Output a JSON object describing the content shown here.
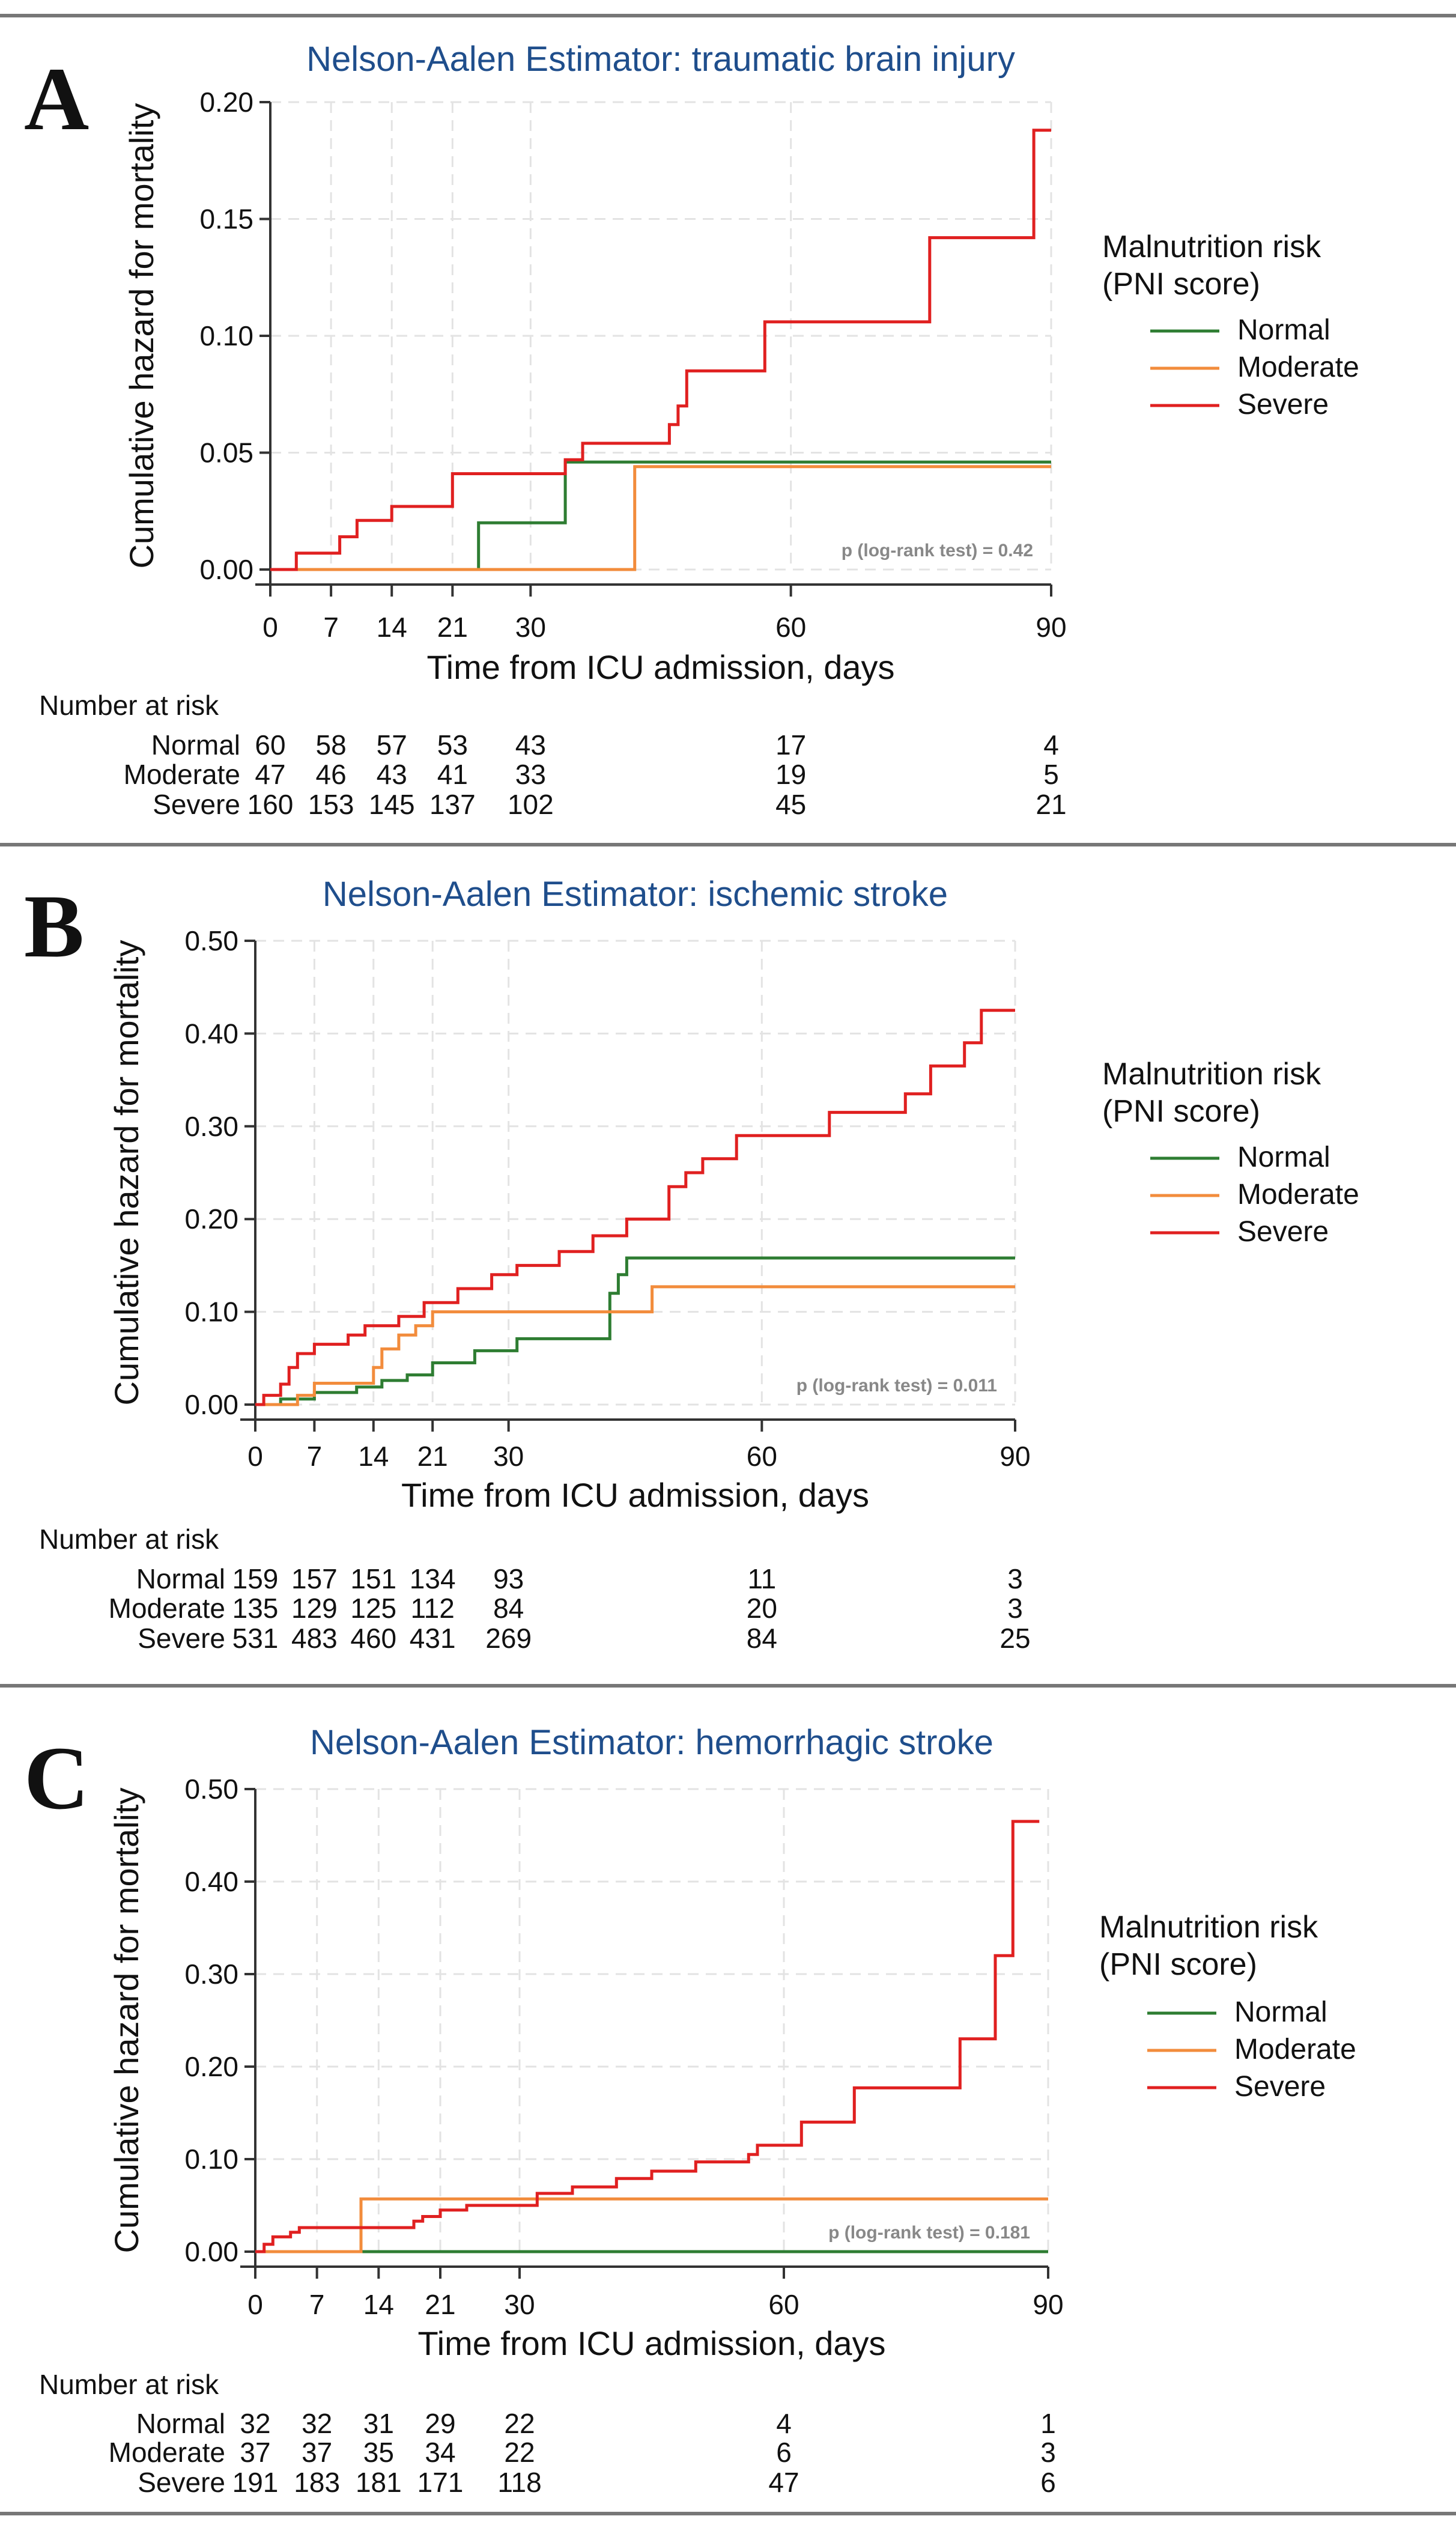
{
  "chart_data": [
    {
      "type": "line",
      "panel_label": "A",
      "title": "Nelson-Aalen Estimator: traumatic brain injury",
      "xlabel": "Time from ICU admission, days",
      "ylabel": "Cumulative hazard for mortality",
      "xlim": [
        0,
        90
      ],
      "ylim": [
        0,
        0.2
      ],
      "x_ticks": [
        0,
        7,
        14,
        21,
        30,
        60,
        90
      ],
      "y_ticks": [
        "0.00",
        "0.05",
        "0.10",
        "0.15",
        "0.20"
      ],
      "legend_title_line1": "Malnutrition risk",
      "legend_title_line2": "(PNI score)",
      "legend_position": "right",
      "annotation": "p (log-rank test) = 0.42",
      "series": [
        {
          "name": "Normal",
          "color": "#2e7d32",
          "points": [
            [
              0,
              0
            ],
            [
              24,
              0
            ],
            [
              24,
              0.02
            ],
            [
              34,
              0.02
            ],
            [
              34,
              0.046
            ],
            [
              90,
              0.046
            ]
          ]
        },
        {
          "name": "Moderate",
          "color": "#f28c3c",
          "points": [
            [
              0,
              0
            ],
            [
              42,
              0
            ],
            [
              42,
              0.044
            ],
            [
              90,
              0.044
            ]
          ]
        },
        {
          "name": "Severe",
          "color": "#e02020",
          "points": [
            [
              0,
              0
            ],
            [
              3,
              0
            ],
            [
              3,
              0.007
            ],
            [
              8,
              0.007
            ],
            [
              8,
              0.014
            ],
            [
              10,
              0.014
            ],
            [
              10,
              0.021
            ],
            [
              14,
              0.021
            ],
            [
              14,
              0.027
            ],
            [
              21,
              0.027
            ],
            [
              21,
              0.041
            ],
            [
              34,
              0.041
            ],
            [
              34,
              0.047
            ],
            [
              36,
              0.047
            ],
            [
              36,
              0.054
            ],
            [
              46,
              0.054
            ],
            [
              46,
              0.062
            ],
            [
              47,
              0.062
            ],
            [
              47,
              0.07
            ],
            [
              48,
              0.07
            ],
            [
              48,
              0.085
            ],
            [
              57,
              0.085
            ],
            [
              57,
              0.106
            ],
            [
              76,
              0.106
            ],
            [
              76,
              0.142
            ],
            [
              88,
              0.142
            ],
            [
              88,
              0.188
            ],
            [
              90,
              0.188
            ]
          ]
        }
      ],
      "risk_table": {
        "title": "Number at risk",
        "times": [
          0,
          7,
          14,
          21,
          30,
          60,
          90
        ],
        "rows": [
          {
            "label": "Normal",
            "values": [
              "60",
              "58",
              "57",
              "53",
              "43",
              "17",
              "4"
            ]
          },
          {
            "label": "Moderate",
            "values": [
              "47",
              "46",
              "43",
              "41",
              "33",
              "19",
              "5"
            ]
          },
          {
            "label": "Severe",
            "values": [
              "160",
              "153",
              "145",
              "137",
              "102",
              "45",
              "21"
            ]
          }
        ]
      }
    },
    {
      "type": "line",
      "panel_label": "B",
      "title": "Nelson-Aalen Estimator: ischemic stroke",
      "xlabel": "Time from ICU admission, days",
      "ylabel": "Cumulative hazard for mortality",
      "xlim": [
        0,
        90
      ],
      "ylim": [
        0,
        0.5
      ],
      "x_ticks": [
        0,
        7,
        14,
        21,
        30,
        60,
        90
      ],
      "y_ticks": [
        "0.00",
        "0.10",
        "0.20",
        "0.30",
        "0.40",
        "0.50"
      ],
      "legend_title_line1": "Malnutrition risk",
      "legend_title_line2": "(PNI score)",
      "legend_position": "right",
      "annotation": "p (log-rank test) = 0.011",
      "series": [
        {
          "name": "Normal",
          "color": "#2e7d32",
          "points": [
            [
              0,
              0
            ],
            [
              3,
              0
            ],
            [
              3,
              0.006
            ],
            [
              7,
              0.006
            ],
            [
              7,
              0.013
            ],
            [
              12,
              0.013
            ],
            [
              12,
              0.019
            ],
            [
              15,
              0.019
            ],
            [
              15,
              0.026
            ],
            [
              18,
              0.026
            ],
            [
              18,
              0.032
            ],
            [
              21,
              0.032
            ],
            [
              21,
              0.045
            ],
            [
              26,
              0.045
            ],
            [
              26,
              0.058
            ],
            [
              31,
              0.058
            ],
            [
              31,
              0.071
            ],
            [
              42,
              0.071
            ],
            [
              42,
              0.12
            ],
            [
              43,
              0.12
            ],
            [
              43,
              0.14
            ],
            [
              44,
              0.14
            ],
            [
              44,
              0.158
            ],
            [
              90,
              0.158
            ]
          ]
        },
        {
          "name": "Moderate",
          "color": "#f28c3c",
          "points": [
            [
              0,
              0
            ],
            [
              5,
              0
            ],
            [
              5,
              0.01
            ],
            [
              7,
              0.01
            ],
            [
              7,
              0.023
            ],
            [
              14,
              0.023
            ],
            [
              14,
              0.04
            ],
            [
              15,
              0.04
            ],
            [
              15,
              0.06
            ],
            [
              17,
              0.06
            ],
            [
              17,
              0.075
            ],
            [
              19,
              0.075
            ],
            [
              19,
              0.085
            ],
            [
              21,
              0.085
            ],
            [
              21,
              0.1
            ],
            [
              47,
              0.1
            ],
            [
              47,
              0.127
            ],
            [
              90,
              0.127
            ]
          ]
        },
        {
          "name": "Severe",
          "color": "#e02020",
          "points": [
            [
              0,
              0
            ],
            [
              1,
              0
            ],
            [
              1,
              0.01
            ],
            [
              3,
              0.01
            ],
            [
              3,
              0.022
            ],
            [
              4,
              0.022
            ],
            [
              4,
              0.04
            ],
            [
              5,
              0.04
            ],
            [
              5,
              0.055
            ],
            [
              7,
              0.055
            ],
            [
              7,
              0.065
            ],
            [
              11,
              0.065
            ],
            [
              11,
              0.075
            ],
            [
              13,
              0.075
            ],
            [
              13,
              0.085
            ],
            [
              17,
              0.085
            ],
            [
              17,
              0.095
            ],
            [
              20,
              0.095
            ],
            [
              20,
              0.11
            ],
            [
              24,
              0.11
            ],
            [
              24,
              0.125
            ],
            [
              28,
              0.125
            ],
            [
              28,
              0.14
            ],
            [
              31,
              0.14
            ],
            [
              31,
              0.15
            ],
            [
              36,
              0.15
            ],
            [
              36,
              0.165
            ],
            [
              40,
              0.165
            ],
            [
              40,
              0.182
            ],
            [
              44,
              0.182
            ],
            [
              44,
              0.2
            ],
            [
              49,
              0.2
            ],
            [
              49,
              0.235
            ],
            [
              51,
              0.235
            ],
            [
              51,
              0.25
            ],
            [
              53,
              0.25
            ],
            [
              53,
              0.265
            ],
            [
              57,
              0.265
            ],
            [
              57,
              0.29
            ],
            [
              68,
              0.29
            ],
            [
              68,
              0.315
            ],
            [
              77,
              0.315
            ],
            [
              77,
              0.335
            ],
            [
              80,
              0.335
            ],
            [
              80,
              0.365
            ],
            [
              84,
              0.365
            ],
            [
              84,
              0.39
            ],
            [
              86,
              0.39
            ],
            [
              86,
              0.425
            ],
            [
              90,
              0.425
            ]
          ]
        }
      ],
      "risk_table": {
        "title": "Number at risk",
        "times": [
          0,
          7,
          14,
          21,
          30,
          60,
          90
        ],
        "rows": [
          {
            "label": "Normal",
            "values": [
              "159",
              "157",
              "151",
              "134",
              "93",
              "11",
              "3"
            ]
          },
          {
            "label": "Moderate",
            "values": [
              "135",
              "129",
              "125",
              "112",
              "84",
              "20",
              "3"
            ]
          },
          {
            "label": "Severe",
            "values": [
              "531",
              "483",
              "460",
              "431",
              "269",
              "84",
              "25"
            ]
          }
        ]
      }
    },
    {
      "type": "line",
      "panel_label": "C",
      "title": "Nelson-Aalen Estimator: hemorrhagic stroke",
      "xlabel": "Time from ICU admission, days",
      "ylabel": "Cumulative hazard for mortality",
      "xlim": [
        0,
        90
      ],
      "ylim": [
        0,
        0.5
      ],
      "x_ticks": [
        0,
        7,
        14,
        21,
        30,
        60,
        90
      ],
      "y_ticks": [
        "0.00",
        "0.10",
        "0.20",
        "0.30",
        "0.40",
        "0.50"
      ],
      "legend_title_line1": "Malnutrition risk",
      "legend_title_line2": "(PNI score)",
      "legend_position": "right",
      "annotation": "p (log-rank test) = 0.181",
      "series": [
        {
          "name": "Normal",
          "color": "#2e7d32",
          "points": [
            [
              0,
              0
            ],
            [
              90,
              0
            ]
          ]
        },
        {
          "name": "Moderate",
          "color": "#f28c3c",
          "points": [
            [
              0,
              0
            ],
            [
              12,
              0
            ],
            [
              12,
              0.057
            ],
            [
              90,
              0.057
            ]
          ]
        },
        {
          "name": "Severe",
          "color": "#e02020",
          "points": [
            [
              0,
              0
            ],
            [
              1,
              0
            ],
            [
              1,
              0.008
            ],
            [
              2,
              0.008
            ],
            [
              2,
              0.016
            ],
            [
              4,
              0.016
            ],
            [
              4,
              0.021
            ],
            [
              5,
              0.021
            ],
            [
              5,
              0.026
            ],
            [
              18,
              0.026
            ],
            [
              18,
              0.033
            ],
            [
              19,
              0.033
            ],
            [
              19,
              0.038
            ],
            [
              21,
              0.038
            ],
            [
              21,
              0.045
            ],
            [
              24,
              0.045
            ],
            [
              24,
              0.05
            ],
            [
              32,
              0.05
            ],
            [
              32,
              0.063
            ],
            [
              36,
              0.063
            ],
            [
              36,
              0.07
            ],
            [
              41,
              0.07
            ],
            [
              41,
              0.079
            ],
            [
              45,
              0.079
            ],
            [
              45,
              0.087
            ],
            [
              50,
              0.087
            ],
            [
              50,
              0.097
            ],
            [
              56,
              0.097
            ],
            [
              56,
              0.105
            ],
            [
              57,
              0.105
            ],
            [
              57,
              0.115
            ],
            [
              62,
              0.115
            ],
            [
              62,
              0.14
            ],
            [
              68,
              0.14
            ],
            [
              68,
              0.177
            ],
            [
              80,
              0.177
            ],
            [
              80,
              0.23
            ],
            [
              84,
              0.23
            ],
            [
              84,
              0.32
            ],
            [
              86,
              0.32
            ],
            [
              86,
              0.465
            ],
            [
              89,
              0.465
            ]
          ]
        }
      ],
      "risk_table": {
        "title": "Number at risk",
        "times": [
          0,
          7,
          14,
          21,
          30,
          60,
          90
        ],
        "rows": [
          {
            "label": "Normal",
            "values": [
              "32",
              "32",
              "31",
              "29",
              "22",
              "4",
              "1"
            ]
          },
          {
            "label": "Moderate",
            "values": [
              "37",
              "37",
              "35",
              "34",
              "22",
              "6",
              "3"
            ]
          },
          {
            "label": "Severe",
            "values": [
              "191",
              "183",
              "181",
              "171",
              "118",
              "47",
              "6"
            ]
          }
        ]
      }
    }
  ]
}
